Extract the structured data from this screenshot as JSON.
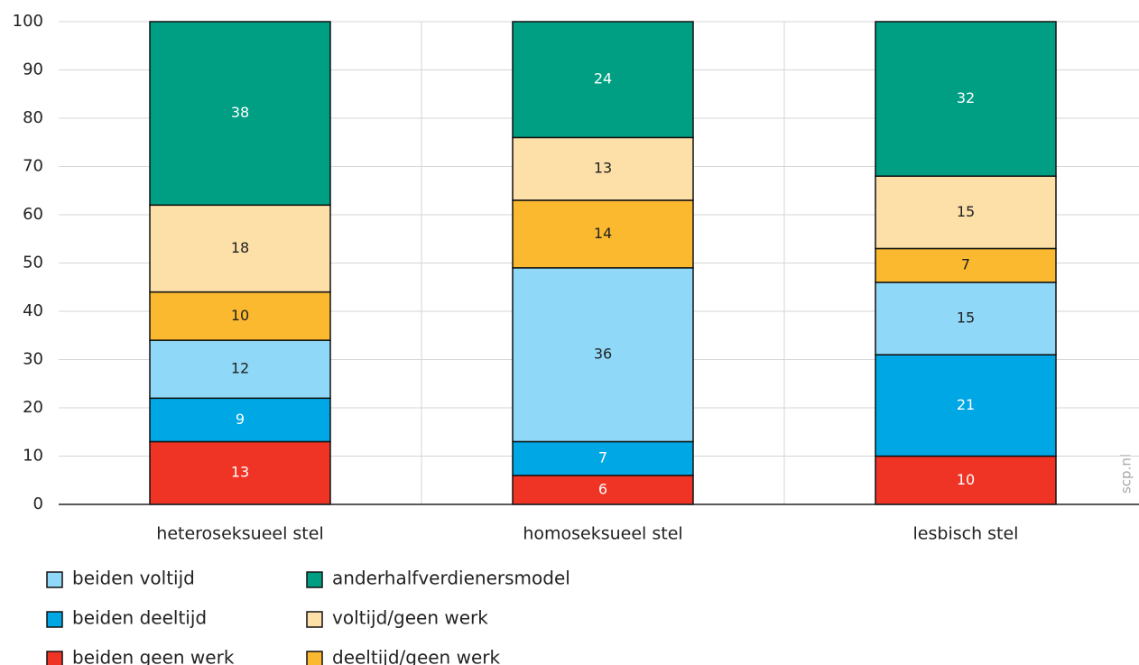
{
  "chart_data": {
    "type": "bar",
    "stacked": true,
    "categories": [
      "heteroseksueel stel",
      "homoseksueel stel",
      "lesbisch stel"
    ],
    "series": [
      {
        "name": "beiden voltijd",
        "color": "#8fd8f8",
        "values": [
          12,
          36,
          15
        ]
      },
      {
        "name": "beiden deeltijd",
        "color": "#00a7e5",
        "values": [
          9,
          7,
          21
        ]
      },
      {
        "name": "beiden geen werk",
        "color": "#ef3426",
        "values": [
          13,
          6,
          10
        ]
      },
      {
        "name": "anderhalfverdienersmodel",
        "color": "#009f83",
        "values": [
          38,
          24,
          32
        ]
      },
      {
        "name": "voltijd/geen werk",
        "color": "#fddfa8",
        "values": [
          18,
          13,
          15
        ]
      },
      {
        "name": "deeltijd/geen werk",
        "color": "#fbb930",
        "values": [
          10,
          14,
          7
        ]
      }
    ],
    "ylim": [
      0,
      100
    ],
    "yticks": [
      0,
      10,
      20,
      30,
      40,
      50,
      60,
      70,
      80,
      90,
      100
    ],
    "grid": true,
    "watermark": "scp.nl"
  }
}
